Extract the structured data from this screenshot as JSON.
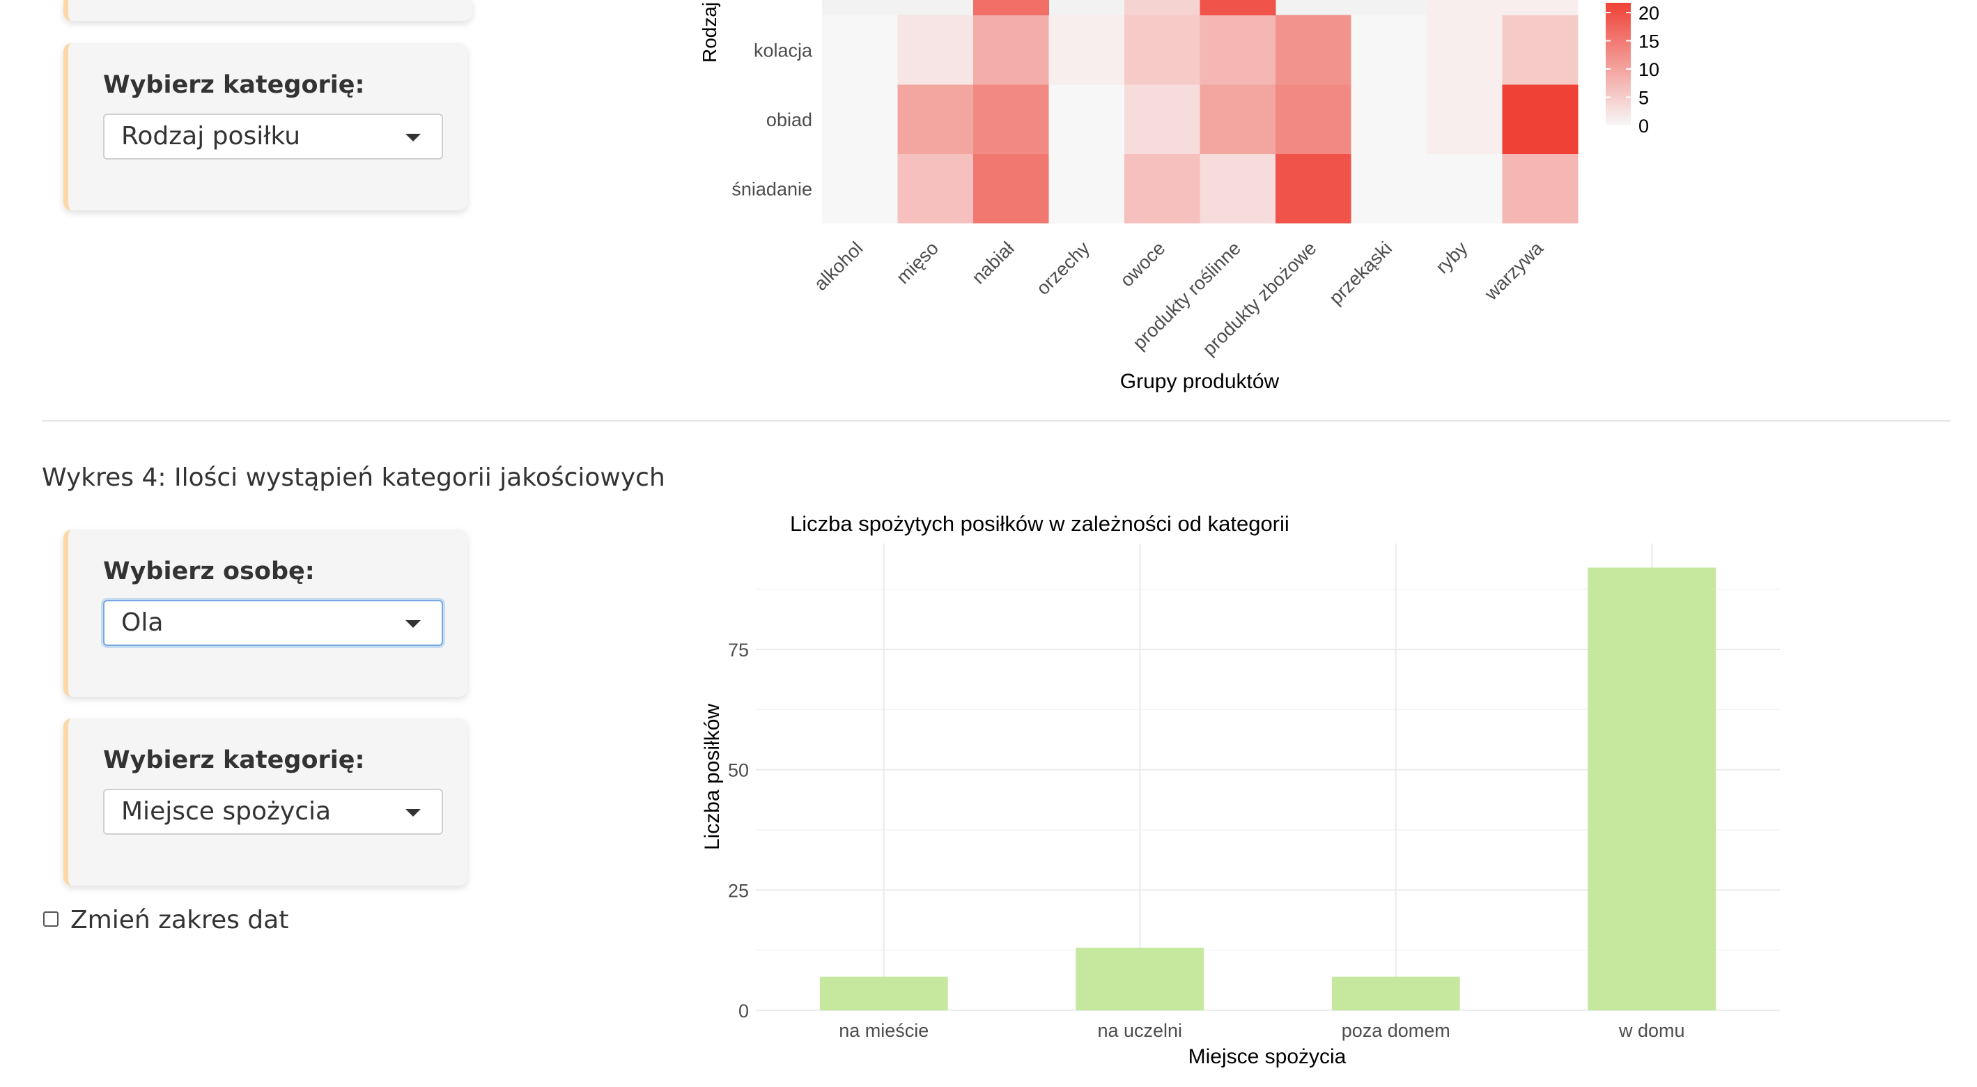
{
  "sidebar_top": {
    "category_label": "Wybierz kategorię:",
    "category_value": "Rodzaj posiłku"
  },
  "section4": {
    "title": "Wykres 4: Ilości wystąpień kategorii jakościowych",
    "person_label": "Wybierz osobę:",
    "person_value": "Ola",
    "category_label": "Wybierz kategorię:",
    "category_value": "Miejsce spożycia",
    "date_checkbox_label": "Zmień zakres dat",
    "date_checkbox_checked": false
  },
  "icons": {
    "dropdown": "chevron-down-icon",
    "checkbox": "checkbox-icon"
  },
  "chart_data": [
    {
      "type": "heatmap",
      "xlabel": "Grupy produktów",
      "ylabel": "Rodzaj posiłku",
      "x": [
        "alkohol",
        "mięso",
        "nabiał",
        "orzechy",
        "owoce",
        "produkty roślinne",
        "produkty zbożowe",
        "przekąski",
        "ryby",
        "warzywa"
      ],
      "y": [
        "śniadanie",
        "obiad",
        "kolacja"
      ],
      "values": [
        [
          0,
          6,
          14,
          0,
          6,
          3,
          18,
          0,
          0,
          7
        ],
        [
          0,
          9,
          12,
          0,
          3,
          9,
          12,
          0,
          1,
          22
        ],
        [
          0,
          2,
          8,
          1,
          5,
          7,
          11,
          0,
          1,
          5
        ]
      ],
      "partial_top_row_values": [
        null,
        null,
        15,
        null,
        4,
        18,
        null,
        null,
        1,
        1
      ],
      "legend": {
        "ticks": [
          0,
          5,
          10,
          15,
          20
        ],
        "low_color": "#f7f7f7",
        "high_color": "#ef4136",
        "placement": "right"
      }
    },
    {
      "type": "bar",
      "title": "Liczba spożytych posiłków w zależności od kategorii",
      "xlabel": "Miejsce spożycia",
      "ylabel": "Liczba posiłków",
      "categories": [
        "na mieście",
        "na uczelni",
        "poza domem",
        "w domu"
      ],
      "values": [
        7,
        13,
        7,
        92
      ],
      "ylim": [
        0,
        97
      ],
      "yticks": [
        0,
        25,
        50,
        75
      ],
      "bar_color": "#c5e89e",
      "grid": true
    }
  ]
}
